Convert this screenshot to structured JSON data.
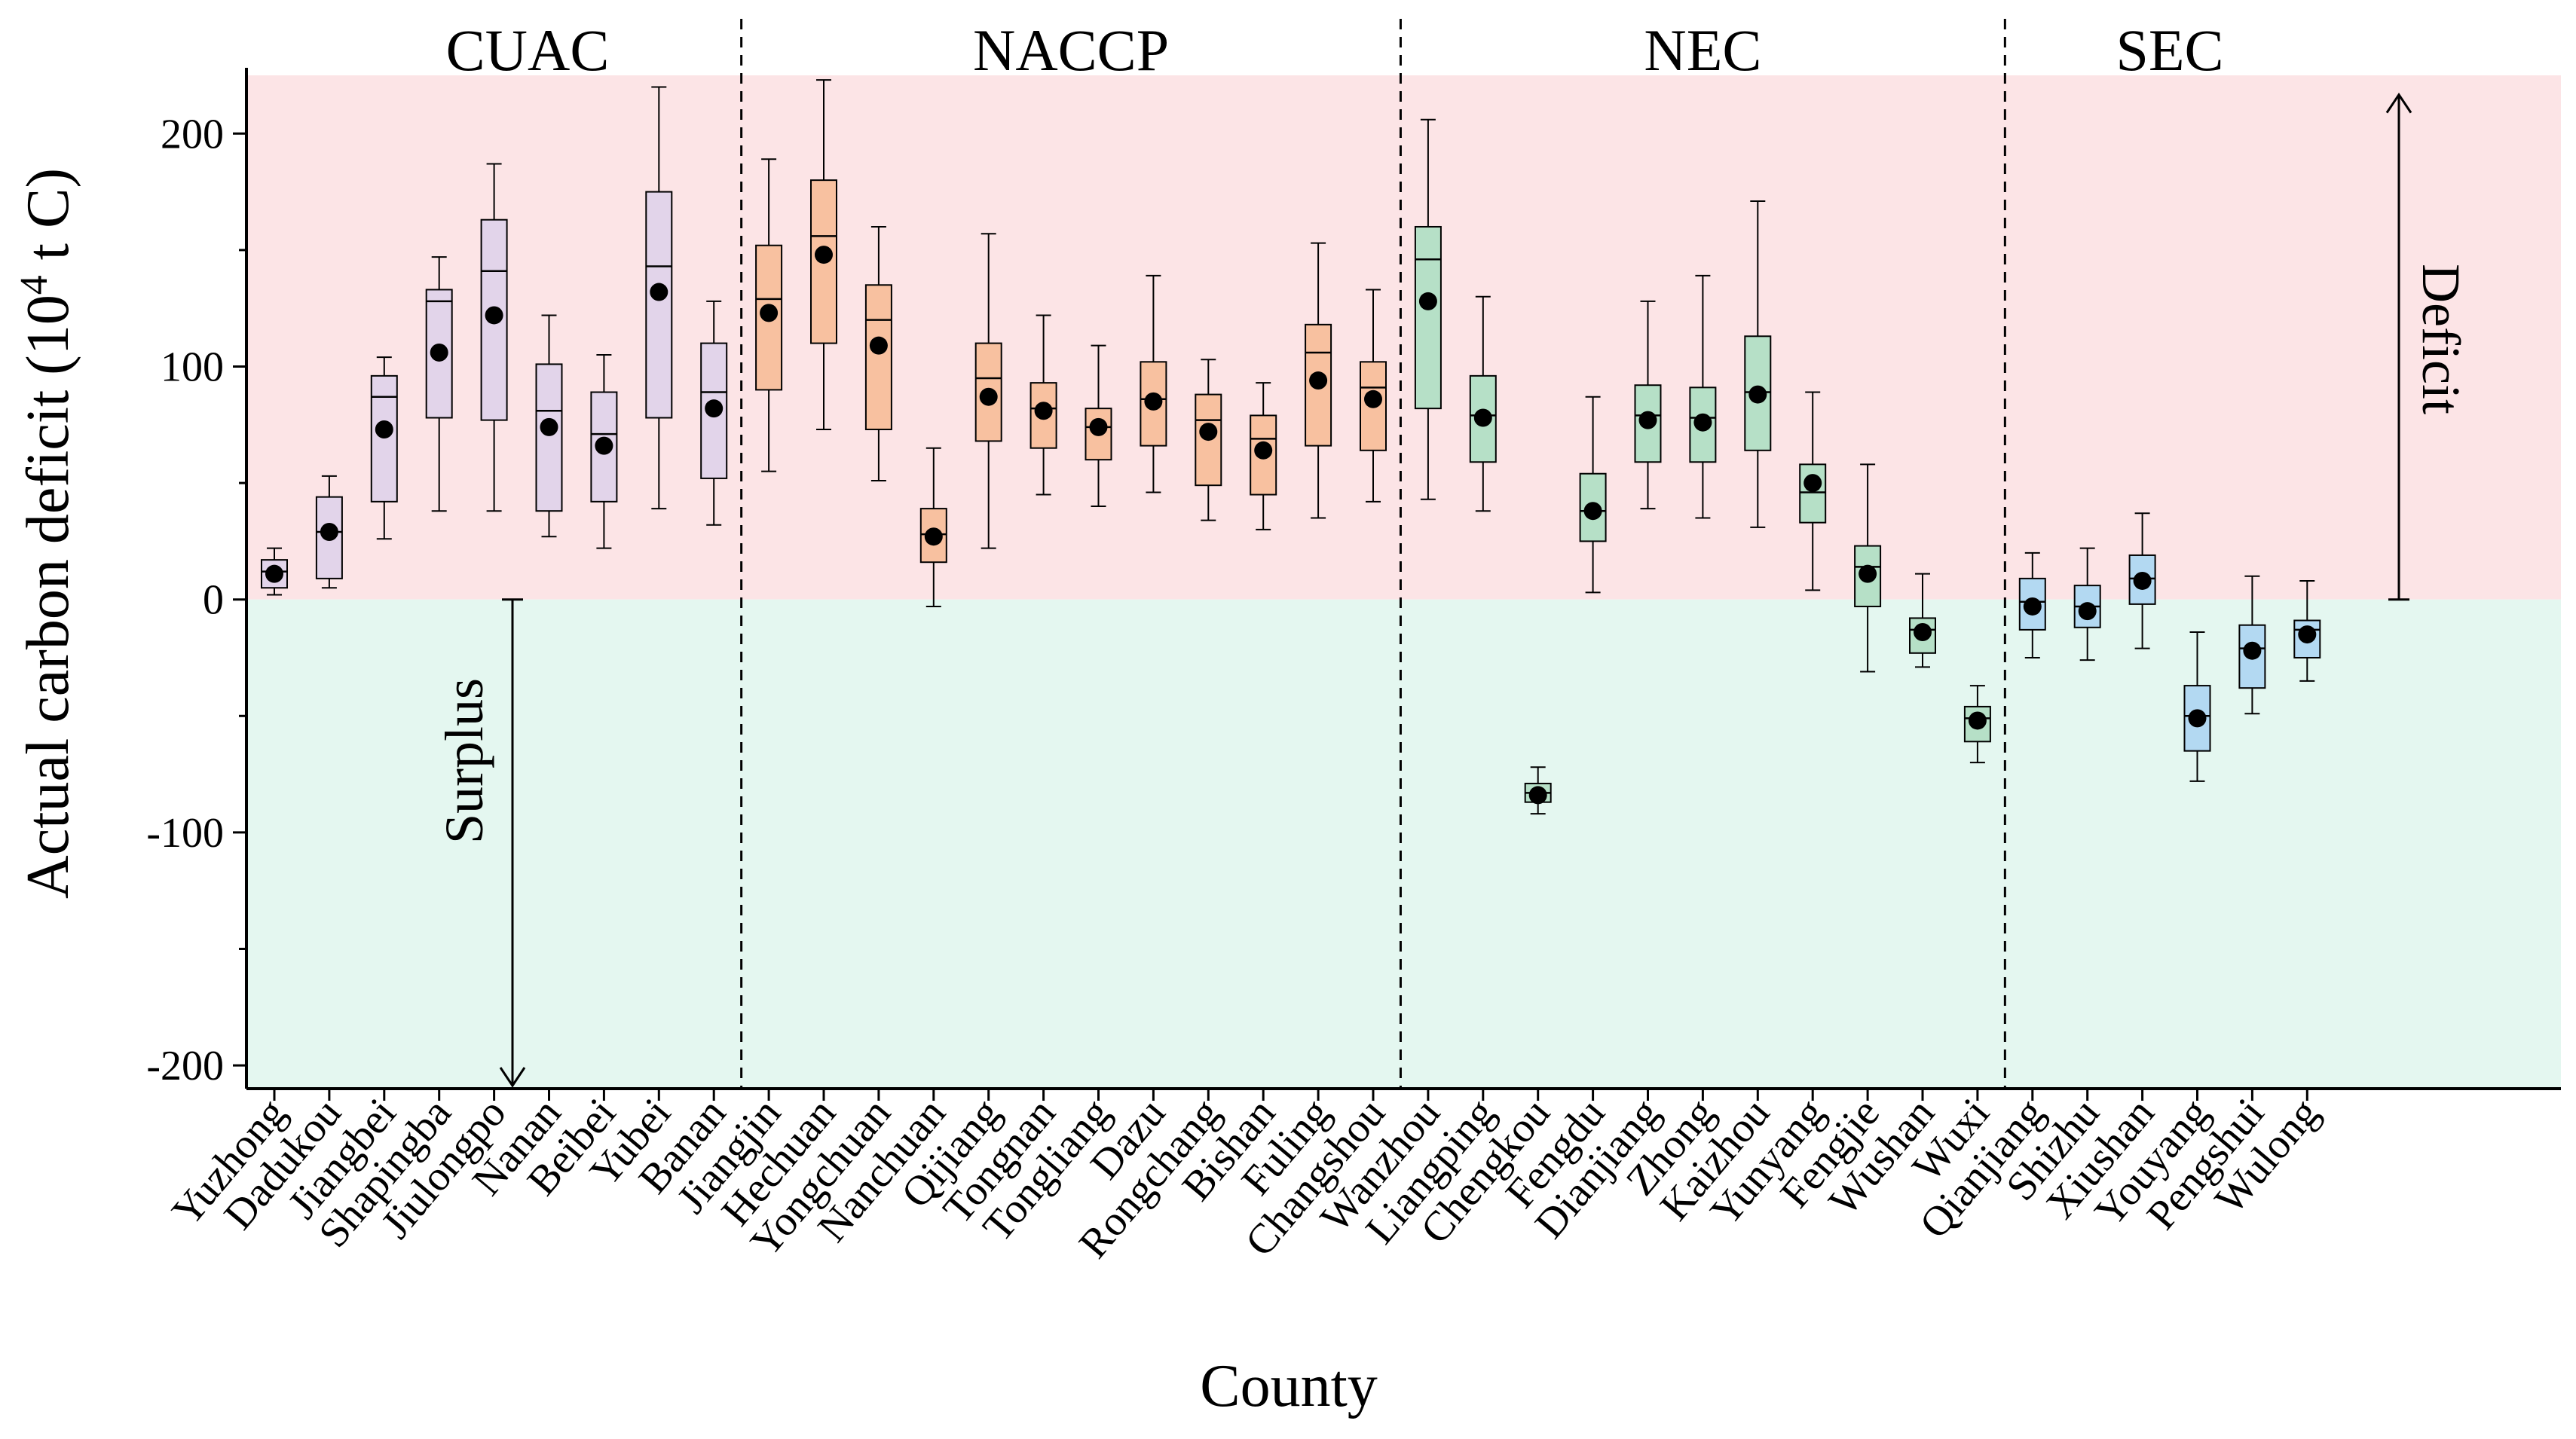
{
  "chart_data": {
    "type": "box",
    "xlabel": "County",
    "ylabel_main": "Actual carbon deficit (10",
    "ylabel_sup": "4",
    "ylabel_tail": " t C)",
    "ylim": [
      -210,
      225
    ],
    "yticks": [
      -200,
      -100,
      0,
      100,
      200
    ],
    "ytick_labels": [
      "-200",
      "-100",
      "0",
      "100",
      "200"
    ],
    "regions": [
      {
        "name": "Deficit",
        "from": 0,
        "to": 225,
        "color": "#fce4e6"
      },
      {
        "name": "Surplus",
        "from": -210,
        "to": 0,
        "color": "#e4f7f0"
      }
    ],
    "annotations": {
      "surplus": {
        "text": "Surplus",
        "arrow_from": 0,
        "arrow_to": -210
      },
      "deficit": {
        "text": "Deficit",
        "arrow_from": 0,
        "arrow_to": 218
      }
    },
    "groups": [
      {
        "name": "CUAC",
        "color": "#e2d4ea",
        "counties": [
          {
            "name": "Yuzhong",
            "min": 2,
            "q1": 5,
            "median": 12,
            "q3": 17,
            "max": 22,
            "mean": 11
          },
          {
            "name": "Dadukou",
            "min": 5,
            "q1": 9,
            "median": 29,
            "q3": 44,
            "max": 53,
            "mean": 29
          },
          {
            "name": "Jiangbei",
            "min": 26,
            "q1": 42,
            "median": 87,
            "q3": 96,
            "max": 104,
            "mean": 73
          },
          {
            "name": "Shapingba",
            "min": 38,
            "q1": 78,
            "median": 128,
            "q3": 133,
            "max": 147,
            "mean": 106
          },
          {
            "name": "Jiulongpo",
            "min": 38,
            "q1": 77,
            "median": 141,
            "q3": 163,
            "max": 187,
            "mean": 122
          },
          {
            "name": "Nanan",
            "min": 27,
            "q1": 38,
            "median": 81,
            "q3": 101,
            "max": 122,
            "mean": 74
          },
          {
            "name": "Beibei",
            "min": 22,
            "q1": 42,
            "median": 71,
            "q3": 89,
            "max": 105,
            "mean": 66
          },
          {
            "name": "Yubei",
            "min": 39,
            "q1": 78,
            "median": 143,
            "q3": 175,
            "max": 220,
            "mean": 132
          },
          {
            "name": "Banan",
            "min": 32,
            "q1": 52,
            "median": 89,
            "q3": 110,
            "max": 128,
            "mean": 82
          }
        ]
      },
      {
        "name": "NACCP",
        "color": "#f8c1a0",
        "counties": [
          {
            "name": "Jiangjin",
            "min": 55,
            "q1": 90,
            "median": 129,
            "q3": 152,
            "max": 189,
            "mean": 123
          },
          {
            "name": "Hechuan",
            "min": 73,
            "q1": 110,
            "median": 156,
            "q3": 180,
            "max": 223,
            "mean": 148
          },
          {
            "name": "Yongchuan",
            "min": 51,
            "q1": 73,
            "median": 120,
            "q3": 135,
            "max": 160,
            "mean": 109
          },
          {
            "name": "Nanchuan",
            "min": -3,
            "q1": 16,
            "median": 28,
            "q3": 39,
            "max": 65,
            "mean": 27
          },
          {
            "name": "Qijiang",
            "min": 22,
            "q1": 68,
            "median": 95,
            "q3": 110,
            "max": 157,
            "mean": 87
          },
          {
            "name": "Tongnan",
            "min": 45,
            "q1": 65,
            "median": 82,
            "q3": 93,
            "max": 122,
            "mean": 81
          },
          {
            "name": "Tongliang",
            "min": 40,
            "q1": 60,
            "median": 74,
            "q3": 82,
            "max": 109,
            "mean": 74
          },
          {
            "name": "Dazu",
            "min": 46,
            "q1": 66,
            "median": 86,
            "q3": 102,
            "max": 139,
            "mean": 85
          },
          {
            "name": "Rongchang",
            "min": 34,
            "q1": 49,
            "median": 77,
            "q3": 88,
            "max": 103,
            "mean": 72
          },
          {
            "name": "Bishan",
            "min": 30,
            "q1": 45,
            "median": 69,
            "q3": 79,
            "max": 93,
            "mean": 64
          },
          {
            "name": "Fuling",
            "min": 35,
            "q1": 66,
            "median": 106,
            "q3": 118,
            "max": 153,
            "mean": 94
          },
          {
            "name": "Changshou",
            "min": 42,
            "q1": 64,
            "median": 91,
            "q3": 102,
            "max": 133,
            "mean": 86
          }
        ]
      },
      {
        "name": "NEC",
        "color": "#b6e0c7",
        "counties": [
          {
            "name": "Wanzhou",
            "min": 43,
            "q1": 82,
            "median": 146,
            "q3": 160,
            "max": 206,
            "mean": 128
          },
          {
            "name": "Liangping",
            "min": 38,
            "q1": 59,
            "median": 79,
            "q3": 96,
            "max": 130,
            "mean": 78
          },
          {
            "name": "Chengkou",
            "min": -92,
            "q1": -87,
            "median": -83,
            "q3": -79,
            "max": -72,
            "mean": -84
          },
          {
            "name": "Fengdu",
            "min": 3,
            "q1": 25,
            "median": 38,
            "q3": 54,
            "max": 87,
            "mean": 38
          },
          {
            "name": "Dianjiang",
            "min": 39,
            "q1": 59,
            "median": 79,
            "q3": 92,
            "max": 128,
            "mean": 77
          },
          {
            "name": "Zhong",
            "min": 35,
            "q1": 59,
            "median": 78,
            "q3": 91,
            "max": 139,
            "mean": 76
          },
          {
            "name": "Kaizhou",
            "min": 31,
            "q1": 64,
            "median": 89,
            "q3": 113,
            "max": 171,
            "mean": 88
          },
          {
            "name": "Yunyang",
            "min": 4,
            "q1": 33,
            "median": 46,
            "q3": 58,
            "max": 89,
            "mean": 50
          },
          {
            "name": "Fengjie",
            "min": -31,
            "q1": -3,
            "median": 14,
            "q3": 23,
            "max": 58,
            "mean": 11
          },
          {
            "name": "Wushan",
            "min": -29,
            "q1": -23,
            "median": -13,
            "q3": -8,
            "max": 11,
            "mean": -14
          },
          {
            "name": "Wuxi",
            "min": -70,
            "q1": -61,
            "median": -51,
            "q3": -46,
            "max": -37,
            "mean": -52
          }
        ]
      },
      {
        "name": "SEC",
        "color": "#b3d9f2",
        "counties": [
          {
            "name": "Qianjiang",
            "min": -25,
            "q1": -13,
            "median": -1,
            "q3": 9,
            "max": 20,
            "mean": -3
          },
          {
            "name": "Shizhu",
            "min": -26,
            "q1": -12,
            "median": -3,
            "q3": 6,
            "max": 22,
            "mean": -5
          },
          {
            "name": "Xiushan",
            "min": -21,
            "q1": -2,
            "median": 9,
            "q3": 19,
            "max": 37,
            "mean": 8
          },
          {
            "name": "Youyang",
            "min": -78,
            "q1": -65,
            "median": -50,
            "q3": -37,
            "max": -14,
            "mean": -51
          },
          {
            "name": "Pengshui",
            "min": -49,
            "q1": -38,
            "median": -21,
            "q3": -11,
            "max": 10,
            "mean": -22
          },
          {
            "name": "Wulong",
            "min": -35,
            "q1": -25,
            "median": -13,
            "q3": -9,
            "max": 8,
            "mean": -15
          }
        ]
      }
    ]
  }
}
